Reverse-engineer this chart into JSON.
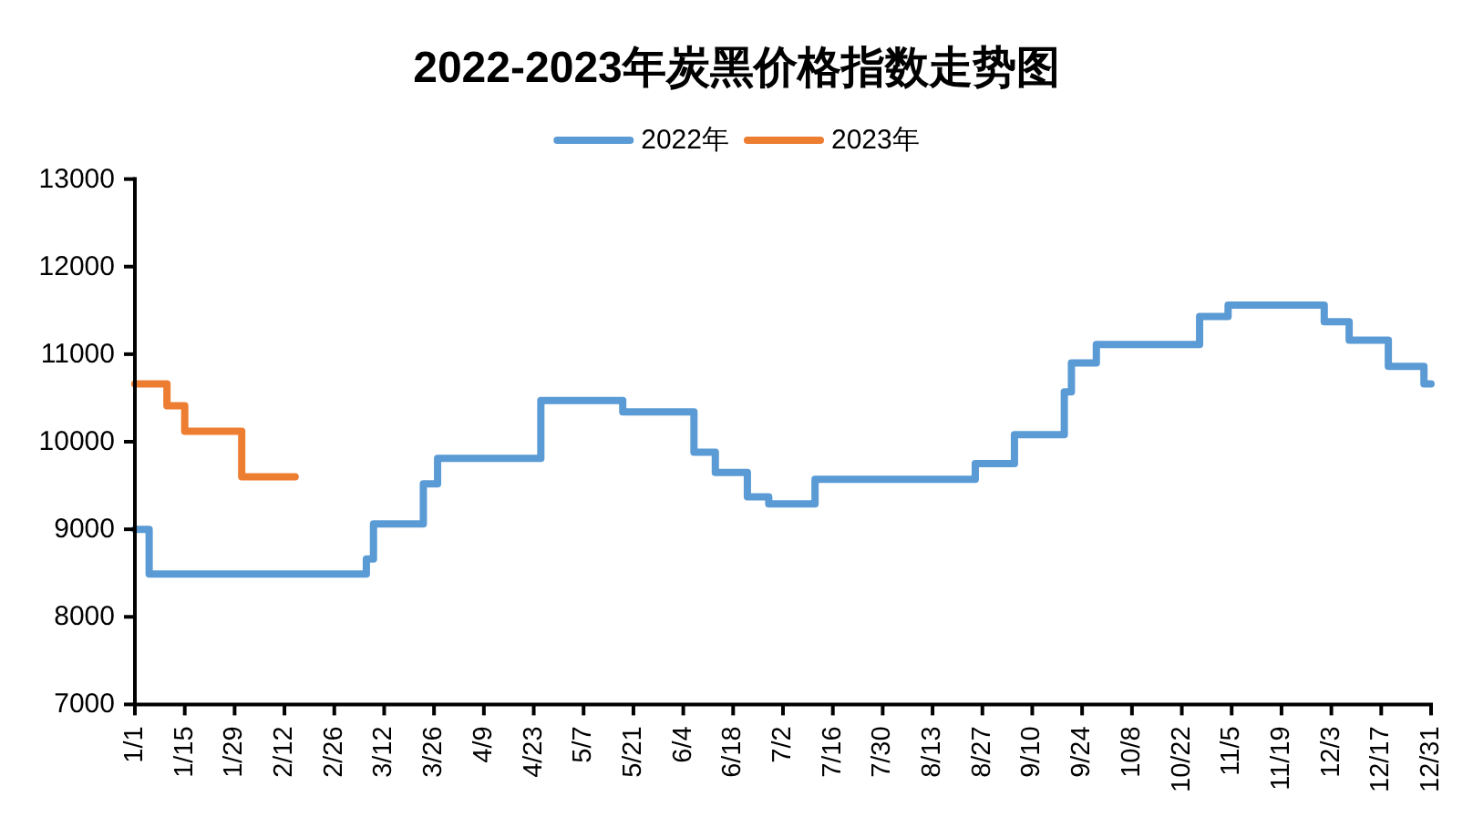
{
  "chart_data": {
    "type": "step",
    "title": "2022-2023年炭黑价格指数走势图",
    "legend": "top",
    "line_style": "solid",
    "xlim": [
      "--01-01",
      "--12-31"
    ],
    "xticks": [
      {
        "value": "--01-01",
        "label": "1/1"
      },
      {
        "value": "--01-15",
        "label": "1/15"
      },
      {
        "value": "--01-29",
        "label": "1/29"
      },
      {
        "value": "--02-12",
        "label": "2/12"
      },
      {
        "value": "--02-26",
        "label": "2/26"
      },
      {
        "value": "--03-12",
        "label": "3/12"
      },
      {
        "value": "--03-26",
        "label": "3/26"
      },
      {
        "value": "--04-09",
        "label": "4/9"
      },
      {
        "value": "--04-23",
        "label": "4/23"
      },
      {
        "value": "--05-07",
        "label": "5/7"
      },
      {
        "value": "--05-21",
        "label": "5/21"
      },
      {
        "value": "--06-04",
        "label": "6/4"
      },
      {
        "value": "--06-18",
        "label": "6/18"
      },
      {
        "value": "--07-02",
        "label": "7/2"
      },
      {
        "value": "--07-16",
        "label": "7/16"
      },
      {
        "value": "--07-30",
        "label": "7/30"
      },
      {
        "value": "--08-13",
        "label": "8/13"
      },
      {
        "value": "--08-27",
        "label": "8/27"
      },
      {
        "value": "--09-10",
        "label": "9/10"
      },
      {
        "value": "--09-24",
        "label": "9/24"
      },
      {
        "value": "--10-08",
        "label": "10/8"
      },
      {
        "value": "--10-22",
        "label": "10/22"
      },
      {
        "value": "--11-05",
        "label": "11/5"
      },
      {
        "value": "--11-19",
        "label": "11/19"
      },
      {
        "value": "--12-03",
        "label": "12/3"
      },
      {
        "value": "--12-17",
        "label": "12/17"
      },
      {
        "value": "--12-31",
        "label": "12/31"
      }
    ],
    "ylim": [
      7000,
      13000
    ],
    "yticks": [
      7000,
      8000,
      9000,
      10000,
      11000,
      12000,
      13000
    ],
    "series": [
      {
        "name": "2022年",
        "color": "#5b9bd5",
        "x": [
          "--01-01",
          "--01-05",
          "--03-07",
          "--03-09",
          "--03-23",
          "--03-27",
          "--04-25",
          "--05-18",
          "--06-07",
          "--06-13",
          "--06-22",
          "--06-28",
          "--07-11",
          "--08-25",
          "--09-05",
          "--09-19",
          "--09-21",
          "--09-28",
          "--10-27",
          "--11-04",
          "--12-01",
          "--12-08",
          "--12-19",
          "--12-29",
          "--12-31"
        ],
        "values": [
          9000,
          8490,
          8660,
          9060,
          9520,
          9810,
          10470,
          10340,
          9880,
          9650,
          9370,
          9290,
          9570,
          9750,
          10080,
          10570,
          10900,
          11110,
          11430,
          11560,
          11370,
          11160,
          10860,
          10660,
          10660
        ]
      },
      {
        "name": "2023年",
        "color": "#ed7d31",
        "x": [
          "--01-01",
          "--01-10",
          "--01-15",
          "--01-31",
          "--02-15"
        ],
        "values": [
          10660,
          10410,
          10120,
          9600,
          9600
        ]
      }
    ]
  }
}
